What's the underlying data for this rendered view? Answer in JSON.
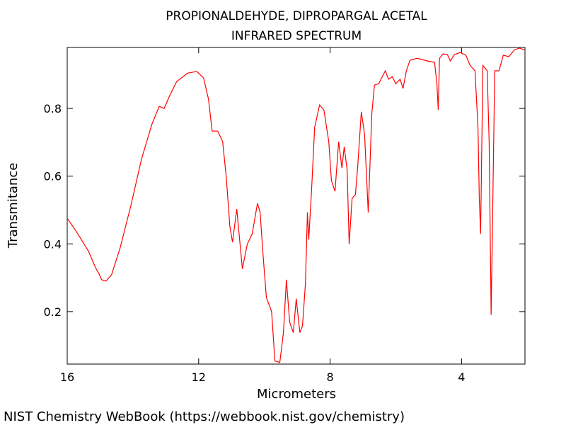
{
  "chart_data": {
    "type": "line",
    "title": "PROPIONALDEHYDE, DIPROPARGAL ACETAL",
    "subtitle": "INFRARED SPECTRUM",
    "x_label": "Micrometers",
    "y_label": "Transmitance",
    "source": "NIST Chemistry WebBook (https://webbook.nist.gov/chemistry)",
    "xlim": [
      16,
      2.07
    ],
    "ylim": [
      0.045,
      0.98
    ],
    "xticks": [
      16,
      12,
      8,
      4
    ],
    "yticks": [
      0.2,
      0.4,
      0.6,
      0.8
    ],
    "x": [
      16,
      15.68,
      15.35,
      15.14,
      15.03,
      14.95,
      14.82,
      14.65,
      14.39,
      14.06,
      13.74,
      13.42,
      13.2,
      13.05,
      12.88,
      12.67,
      12.34,
      12.06,
      11.85,
      11.7,
      11.59,
      11.42,
      11.27,
      11.16,
      11.05,
      10.97,
      10.84,
      10.77,
      10.67,
      10.52,
      10.37,
      10.21,
      10.13,
      10.04,
      9.94,
      9.78,
      9.68,
      9.53,
      9.42,
      9.33,
      9.23,
      9.12,
      9.03,
      8.92,
      8.84,
      8.75,
      8.69,
      8.65,
      8.56,
      8.47,
      8.32,
      8.19,
      8.04,
      7.96,
      7.85,
      7.74,
      7.64,
      7.57,
      7.48,
      7.42,
      7.33,
      7.23,
      7.16,
      7.05,
      6.95,
      6.84,
      6.73,
      6.65,
      6.52,
      6.43,
      6.32,
      6.22,
      6.11,
      6.0,
      5.87,
      5.78,
      5.68,
      5.57,
      5.35,
      5.03,
      4.82,
      4.75,
      4.71,
      4.67,
      4.56,
      4.43,
      4.34,
      4.22,
      4.04,
      3.87,
      3.74,
      3.59,
      3.5,
      3.46,
      3.42,
      3.35,
      3.22,
      3.16,
      3.1,
      3.05,
      2.99,
      2.86,
      2.73,
      2.56,
      2.39,
      2.24,
      2.09
    ],
    "series": [
      {
        "name": "Transmitance",
        "color": "#ff0000",
        "values": [
          0.476,
          0.43,
          0.378,
          0.33,
          0.311,
          0.294,
          0.29,
          0.309,
          0.388,
          0.514,
          0.65,
          0.754,
          0.806,
          0.8,
          0.838,
          0.879,
          0.904,
          0.909,
          0.89,
          0.827,
          0.733,
          0.733,
          0.702,
          0.597,
          0.451,
          0.405,
          0.503,
          0.43,
          0.326,
          0.399,
          0.43,
          0.52,
          0.493,
          0.367,
          0.242,
          0.2,
          0.054,
          0.05,
          0.138,
          0.294,
          0.169,
          0.138,
          0.238,
          0.138,
          0.158,
          0.284,
          0.493,
          0.413,
          0.566,
          0.744,
          0.81,
          0.796,
          0.702,
          0.587,
          0.555,
          0.702,
          0.624,
          0.687,
          0.617,
          0.399,
          0.535,
          0.545,
          0.629,
          0.79,
          0.723,
          0.493,
          0.785,
          0.869,
          0.873,
          0.89,
          0.911,
          0.886,
          0.894,
          0.873,
          0.886,
          0.859,
          0.911,
          0.942,
          0.948,
          0.94,
          0.936,
          0.873,
          0.796,
          0.948,
          0.961,
          0.959,
          0.94,
          0.959,
          0.965,
          0.957,
          0.927,
          0.911,
          0.744,
          0.535,
          0.43,
          0.927,
          0.911,
          0.702,
          0.19,
          0.514,
          0.911,
          0.911,
          0.957,
          0.953,
          0.973,
          0.978,
          0.973
        ]
      }
    ]
  }
}
